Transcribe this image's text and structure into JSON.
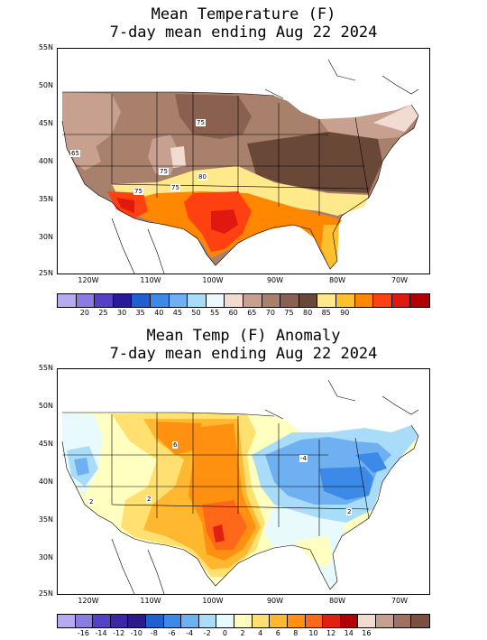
{
  "panel1": {
    "title_line1": "Mean Temperature (F)",
    "title_line2": "7-day mean ending Aug 22 2024",
    "lat_labels": [
      "55N",
      "50N",
      "45N",
      "40N",
      "35N",
      "30N",
      "25N"
    ],
    "lon_labels": [
      "120W",
      "110W",
      "100W",
      "90W",
      "80W",
      "70W"
    ],
    "contour_labels": [
      "65",
      "75",
      "75",
      "80",
      "75",
      "75"
    ],
    "colorbar": {
      "colors": [
        "#b8a9f0",
        "#8c7be0",
        "#5540c8",
        "#2a1a9a",
        "#1f5fd0",
        "#3c8ae8",
        "#6eb0f2",
        "#a8dcf8",
        "#e8fafc",
        "#f2dcd2",
        "#c8a090",
        "#a8806c",
        "#8a6050",
        "#6a4838",
        "#ffe98a",
        "#ffc030",
        "#ff8800",
        "#ff4010",
        "#e01810",
        "#b00000"
      ],
      "labels": [
        "20",
        "25",
        "30",
        "35",
        "40",
        "45",
        "50",
        "55",
        "60",
        "65",
        "70",
        "75",
        "80",
        "85",
        "90"
      ]
    }
  },
  "panel2": {
    "title_line1": "Mean Temp (F) Anomaly",
    "title_line2": "7-day mean ending Aug 22 2024",
    "lat_labels": [
      "55N",
      "50N",
      "45N",
      "40N",
      "35N",
      "30N",
      "25N"
    ],
    "lon_labels": [
      "120W",
      "110W",
      "100W",
      "90W",
      "80W",
      "70W"
    ],
    "contour_labels": [
      "2",
      "2",
      "6",
      "-4",
      "2"
    ],
    "colorbar": {
      "colors": [
        "#b8a9f0",
        "#8c7be0",
        "#5540c8",
        "#3a28a8",
        "#2a1a8a",
        "#1f5fd0",
        "#3c8ae8",
        "#6eb0f2",
        "#a8dcf8",
        "#e8fafc",
        "#ffffc0",
        "#ffe070",
        "#ffb830",
        "#ff9010",
        "#ff6818",
        "#e02010",
        "#b00000",
        "#f2dcd2",
        "#c8a090",
        "#a07060",
        "#7a5040"
      ],
      "labels": [
        "-16",
        "-14",
        "-12",
        "-10",
        "-8",
        "-6",
        "-4",
        "-2",
        "0",
        "2",
        "4",
        "6",
        "8",
        "10",
        "12",
        "14",
        "16"
      ]
    }
  }
}
